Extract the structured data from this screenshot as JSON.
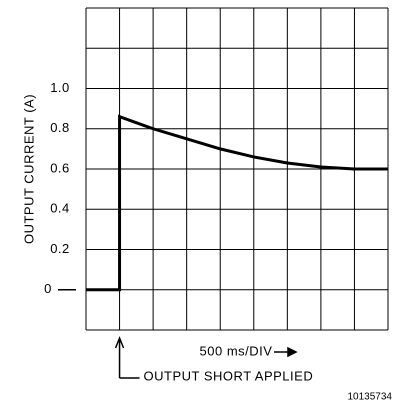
{
  "chart_data": {
    "type": "line",
    "ylabel": "OUTPUT CURRENT (A)",
    "xlabel": "500 ms/DIV",
    "annotations": [
      {
        "text": "OUTPUT SHORT APPLIED",
        "x": 500
      }
    ],
    "figure_number": "10135734",
    "xlim": [
      0,
      4500
    ],
    "xgrid": [
      0,
      500,
      1000,
      1500,
      2000,
      2500,
      3000,
      3500,
      4000,
      4500
    ],
    "ylim": [
      -0.2,
      1.4
    ],
    "ygrid": [
      -0.2,
      0,
      0.2,
      0.4,
      0.6,
      0.8,
      1.0,
      1.2,
      1.4
    ],
    "yticks": [
      0,
      0.2,
      0.4,
      0.6,
      0.8,
      {
        "value": 1,
        "label": "1.0"
      }
    ],
    "grid": true,
    "series": [
      {
        "color": "#000000",
        "x": [
          0,
          500,
          500,
          1000,
          1500,
          2000,
          2500,
          3000,
          3500,
          4000,
          4500
        ],
        "values": [
          0,
          0,
          0.86,
          0.8,
          0.75,
          0.7,
          0.66,
          0.63,
          0.61,
          0.6,
          0.6
        ]
      }
    ]
  }
}
